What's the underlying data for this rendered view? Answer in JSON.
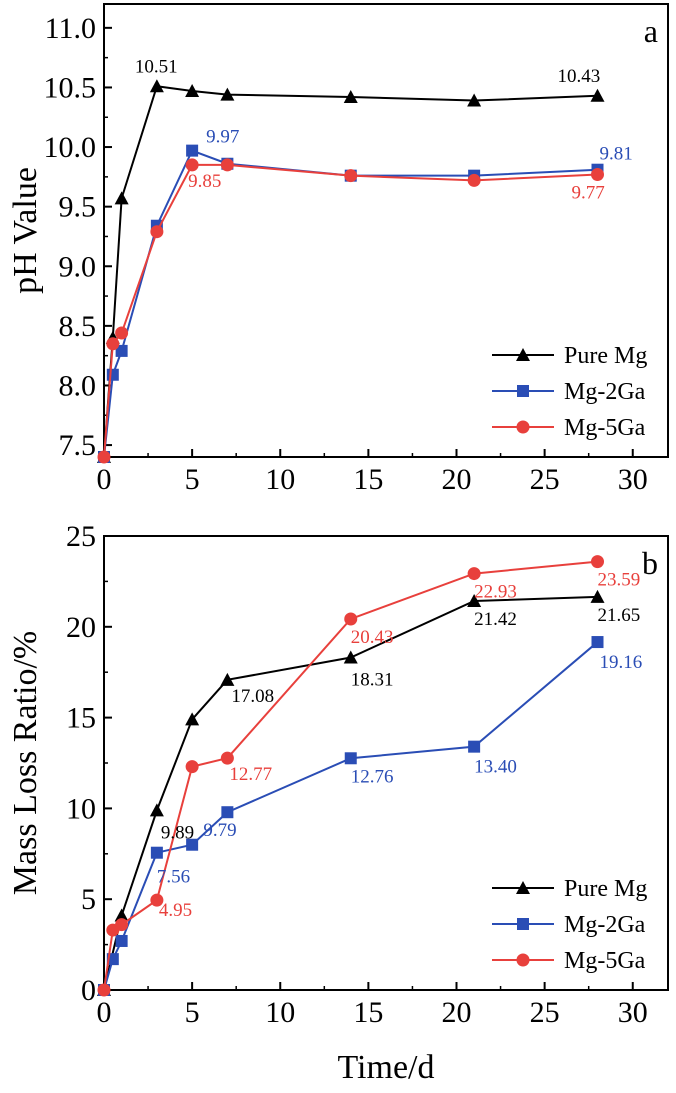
{
  "chart_data": [
    {
      "type": "line",
      "panel_label": "a",
      "title": "",
      "xlabel": "",
      "ylabel": "pH Value",
      "xlim": [
        0,
        32
      ],
      "ylim": [
        7.4,
        11.2
      ],
      "xticks": [
        "0",
        "5",
        "10",
        "15",
        "20",
        "25",
        "30"
      ],
      "yticks": [
        "7.5",
        "8.0",
        "8.5",
        "9.0",
        "9.5",
        "10.0",
        "10.5",
        "11.0"
      ],
      "grid": false,
      "legend_position": "bottom-right",
      "series": [
        {
          "name": "Pure Mg",
          "color": "#000000",
          "marker": "triangle",
          "x": [
            0,
            0.5,
            1,
            3,
            5,
            7,
            14,
            21,
            28
          ],
          "y": [
            7.4,
            8.4,
            9.57,
            10.51,
            10.47,
            10.44,
            10.42,
            10.39,
            10.43
          ]
        },
        {
          "name": "Mg-2Ga",
          "color": "#2a4db5",
          "marker": "square",
          "x": [
            0,
            0.5,
            1,
            3,
            5,
            7,
            14,
            21,
            28
          ],
          "y": [
            7.4,
            8.09,
            8.29,
            9.34,
            9.97,
            9.86,
            9.76,
            9.76,
            9.81
          ]
        },
        {
          "name": "Mg-5Ga",
          "color": "#e8403c",
          "marker": "circle",
          "x": [
            0,
            0.5,
            1,
            3,
            5,
            7,
            14,
            21,
            28
          ],
          "y": [
            7.4,
            8.35,
            8.44,
            9.29,
            9.85,
            9.85,
            9.76,
            9.72,
            9.77
          ]
        }
      ],
      "annotations": [
        {
          "text": "10.51",
          "x": 3,
          "y": 10.51,
          "color": "#000000",
          "dx": -22,
          "dy": -14
        },
        {
          "text": "10.43",
          "x": 28,
          "y": 10.43,
          "color": "#000000",
          "dx": -40,
          "dy": -14
        },
        {
          "text": "9.97",
          "x": 5,
          "y": 9.97,
          "color": "#2a4db5",
          "dx": 14,
          "dy": -8
        },
        {
          "text": "9.81",
          "x": 28,
          "y": 9.81,
          "color": "#2a4db5",
          "dx": 2,
          "dy": -10
        },
        {
          "text": "9.85",
          "x": 5,
          "y": 9.85,
          "color": "#e8403c",
          "dx": -4,
          "dy": 22
        },
        {
          "text": "9.77",
          "x": 28,
          "y": 9.77,
          "color": "#e8403c",
          "dx": -26,
          "dy": 24
        }
      ]
    },
    {
      "type": "line",
      "panel_label": "b",
      "title": "",
      "xlabel": "Time/d",
      "ylabel": "Mass Loss Ratio/%",
      "xlim": [
        0,
        32
      ],
      "ylim": [
        0,
        25
      ],
      "xticks": [
        "0",
        "5",
        "10",
        "15",
        "20",
        "25",
        "30"
      ],
      "yticks": [
        "0",
        "5",
        "10",
        "15",
        "20",
        "25"
      ],
      "grid": false,
      "legend_position": "bottom-right",
      "series": [
        {
          "name": "Pure Mg",
          "color": "#000000",
          "marker": "triangle",
          "x": [
            0,
            1,
            3,
            5,
            7,
            14,
            21,
            28
          ],
          "y": [
            0,
            4.1,
            9.89,
            14.9,
            17.08,
            18.31,
            21.42,
            21.65
          ]
        },
        {
          "name": "Mg-2Ga",
          "color": "#2a4db5",
          "marker": "square",
          "x": [
            0,
            0.5,
            1,
            3,
            5,
            7,
            14,
            21,
            28
          ],
          "y": [
            0,
            1.7,
            2.7,
            7.56,
            8.0,
            9.79,
            12.76,
            13.4,
            19.16
          ]
        },
        {
          "name": "Mg-5Ga",
          "color": "#e8403c",
          "marker": "circle",
          "x": [
            0,
            0.5,
            1,
            3,
            5,
            7,
            14,
            21,
            28
          ],
          "y": [
            0,
            3.3,
            3.6,
            4.95,
            12.3,
            12.77,
            20.43,
            22.93,
            23.59
          ]
        }
      ],
      "annotations": [
        {
          "text": "9.89",
          "x": 3,
          "y": 9.89,
          "color": "#000000",
          "dx": 4,
          "dy": 28
        },
        {
          "text": "17.08",
          "x": 7,
          "y": 17.08,
          "color": "#000000",
          "dx": 4,
          "dy": 22
        },
        {
          "text": "18.31",
          "x": 14,
          "y": 18.31,
          "color": "#000000",
          "dx": 0,
          "dy": 28
        },
        {
          "text": "21.42",
          "x": 21,
          "y": 21.42,
          "color": "#000000",
          "dx": 0,
          "dy": 24
        },
        {
          "text": "21.65",
          "x": 28,
          "y": 21.65,
          "color": "#000000",
          "dx": 0,
          "dy": 24
        },
        {
          "text": "7.56",
          "x": 3,
          "y": 7.56,
          "color": "#2a4db5",
          "dx": 0,
          "dy": 30
        },
        {
          "text": "9.79",
          "x": 7,
          "y": 9.79,
          "color": "#2a4db5",
          "dx": -24,
          "dy": 24
        },
        {
          "text": "12.76",
          "x": 14,
          "y": 12.76,
          "color": "#2a4db5",
          "dx": 0,
          "dy": 24
        },
        {
          "text": "13.40",
          "x": 21,
          "y": 13.4,
          "color": "#2a4db5",
          "dx": 0,
          "dy": 26
        },
        {
          "text": "19.16",
          "x": 28,
          "y": 19.16,
          "color": "#2a4db5",
          "dx": 2,
          "dy": 26
        },
        {
          "text": "4.95",
          "x": 3,
          "y": 4.95,
          "color": "#e8403c",
          "dx": 2,
          "dy": 16
        },
        {
          "text": "12.77",
          "x": 7,
          "y": 12.77,
          "color": "#e8403c",
          "dx": 2,
          "dy": 22
        },
        {
          "text": "20.43",
          "x": 14,
          "y": 20.43,
          "color": "#e8403c",
          "dx": 0,
          "dy": 24
        },
        {
          "text": "22.93",
          "x": 21,
          "y": 22.93,
          "color": "#e8403c",
          "dx": 0,
          "dy": 24
        },
        {
          "text": "23.59",
          "x": 28,
          "y": 23.59,
          "color": "#e8403c",
          "dx": 0,
          "dy": 24
        }
      ]
    }
  ]
}
